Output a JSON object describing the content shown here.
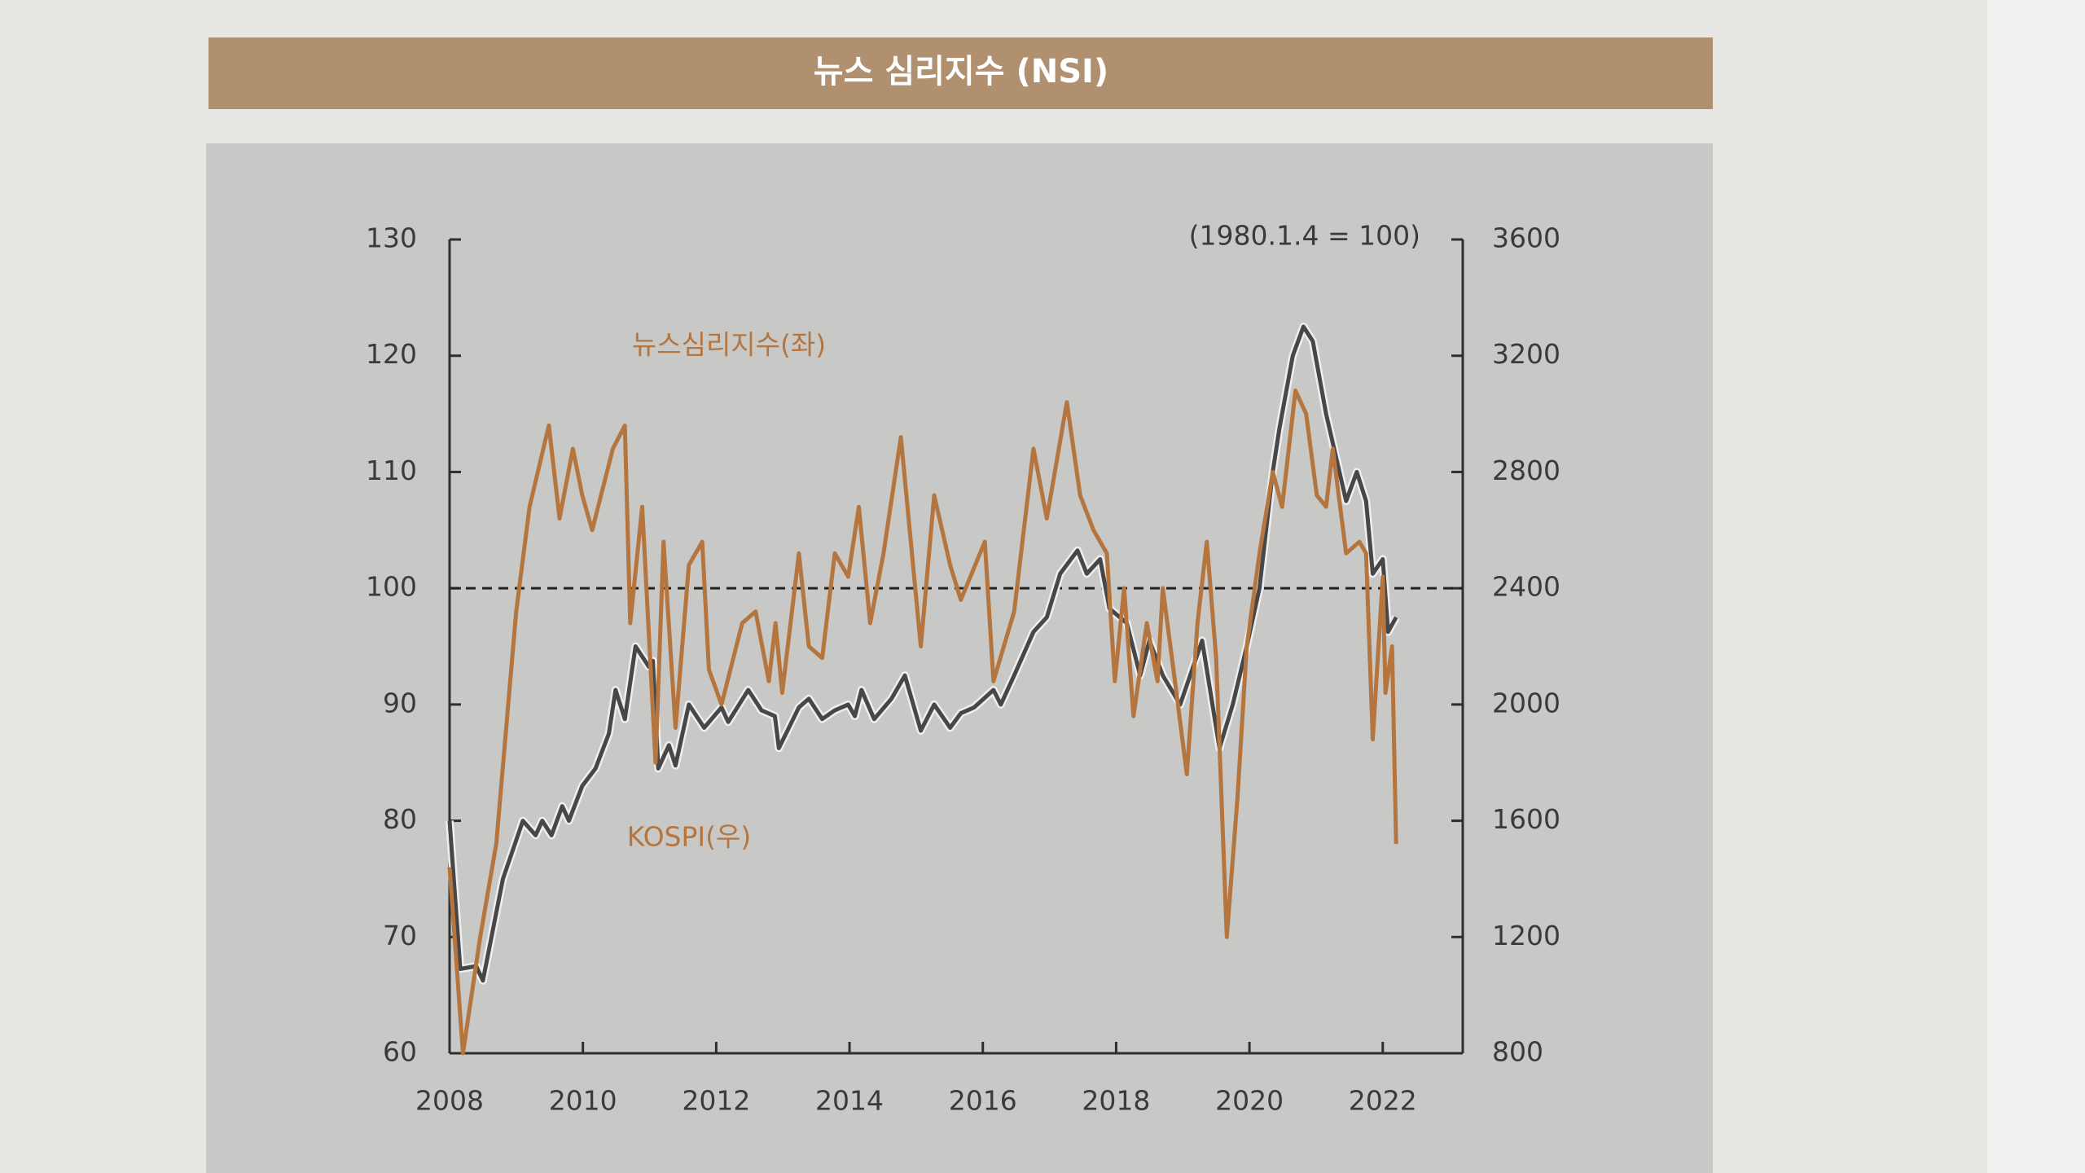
{
  "chart_data": {
    "type": "line",
    "title": "뉴스 심리지수 (NSI)",
    "annotation": "(1980.1.4 = 100)",
    "xlim": [
      2008,
      2023.2
    ],
    "xticks": [
      2008,
      2010,
      2012,
      2014,
      2016,
      2018,
      2020,
      2022
    ],
    "ylim": [
      60,
      130
    ],
    "yticks": [
      60,
      70,
      80,
      90,
      100,
      110,
      120,
      130
    ],
    "y2lim": [
      800,
      3600
    ],
    "y2ticks": [
      800,
      1200,
      1600,
      2000,
      2400,
      2800,
      3200,
      3600
    ],
    "reference_line": 100,
    "series": [
      {
        "name": "뉴스심리지수(좌)",
        "color": "#b5753f",
        "axis": "y",
        "x": [
          2008.0,
          2008.2,
          2008.46,
          2008.7,
          2009.0,
          2009.2,
          2009.49,
          2009.65,
          2009.85,
          2009.99,
          2010.14,
          2010.45,
          2010.63,
          2010.71,
          2010.89,
          2011.09,
          2011.21,
          2011.39,
          2011.59,
          2011.79,
          2011.89,
          2012.08,
          2012.39,
          2012.59,
          2012.79,
          2012.89,
          2012.99,
          2013.24,
          2013.39,
          2013.59,
          2013.78,
          2013.98,
          2014.14,
          2014.31,
          2014.51,
          2014.77,
          2014.97,
          2015.07,
          2015.27,
          2015.51,
          2015.67,
          2016.03,
          2016.16,
          2016.47,
          2016.76,
          2016.96,
          2017.26,
          2017.46,
          2017.66,
          2017.86,
          2017.98,
          2018.12,
          2018.26,
          2018.46,
          2018.62,
          2018.7,
          2018.86,
          2019.06,
          2019.22,
          2019.36,
          2019.5,
          2019.66,
          2019.82,
          2019.96,
          2020.15,
          2020.35,
          2020.49,
          2020.69,
          2020.85,
          2021.01,
          2021.15,
          2021.25,
          2021.45,
          2021.65,
          2021.75,
          2021.85,
          2022.0,
          2022.04,
          2022.14,
          2022.2
        ],
        "values": [
          76,
          60,
          70,
          78,
          98,
          107,
          114,
          106,
          112,
          108,
          105,
          112,
          114,
          97,
          107,
          85,
          104,
          88,
          102,
          104,
          93,
          90,
          97,
          98,
          92,
          97,
          91,
          103,
          95,
          94,
          103,
          101,
          107,
          97,
          103,
          113,
          101,
          95,
          108,
          102,
          99,
          104,
          92,
          98,
          112,
          106,
          116,
          108,
          105,
          103,
          92,
          100,
          89,
          97,
          92,
          100,
          93,
          84,
          97,
          104,
          94,
          70,
          82,
          95,
          103,
          110,
          107,
          117,
          115,
          108,
          107,
          112,
          103,
          104,
          103,
          87,
          101,
          91,
          95,
          78
        ]
      },
      {
        "name": "KOSPI(우)",
        "color": "#474747",
        "axis": "y2",
        "x": [
          2008.0,
          2008.16,
          2008.4,
          2008.5,
          2008.8,
          2009.1,
          2009.29,
          2009.39,
          2009.53,
          2009.69,
          2009.79,
          2009.99,
          2010.19,
          2010.39,
          2010.49,
          2010.63,
          2010.79,
          2010.99,
          2011.05,
          2011.13,
          2011.29,
          2011.39,
          2011.59,
          2011.82,
          2012.08,
          2012.18,
          2012.48,
          2012.68,
          2012.88,
          2012.94,
          2013.24,
          2013.39,
          2013.59,
          2013.78,
          2013.98,
          2014.08,
          2014.18,
          2014.37,
          2014.63,
          2014.83,
          2015.07,
          2015.27,
          2015.51,
          2015.67,
          2015.87,
          2016.16,
          2016.27,
          2016.47,
          2016.76,
          2016.96,
          2017.16,
          2017.42,
          2017.56,
          2017.76,
          2017.9,
          2018.16,
          2018.36,
          2018.5,
          2018.7,
          2018.96,
          2019.29,
          2019.55,
          2019.75,
          2019.96,
          2020.15,
          2020.35,
          2020.45,
          2020.65,
          2020.81,
          2020.95,
          2021.15,
          2021.25,
          2021.45,
          2021.61,
          2021.75,
          2021.85,
          2022.0,
          2022.08,
          2022.2
        ],
        "values": [
          1600,
          1090,
          1100,
          1050,
          1400,
          1600,
          1550,
          1600,
          1550,
          1650,
          1600,
          1720,
          1780,
          1900,
          2050,
          1950,
          2200,
          2130,
          2150,
          1780,
          1860,
          1790,
          2000,
          1920,
          1990,
          1940,
          2050,
          1980,
          1960,
          1850,
          1990,
          2020,
          1950,
          1980,
          2000,
          1960,
          2050,
          1950,
          2020,
          2100,
          1910,
          2000,
          1920,
          1970,
          1990,
          2050,
          2000,
          2100,
          2250,
          2300,
          2450,
          2530,
          2450,
          2500,
          2330,
          2280,
          2100,
          2220,
          2100,
          2000,
          2220,
          1850,
          2000,
          2200,
          2400,
          2800,
          2950,
          3200,
          3300,
          3250,
          3000,
          2900,
          2700,
          2800,
          2700,
          2450,
          2500,
          2250,
          2300
        ]
      }
    ]
  }
}
